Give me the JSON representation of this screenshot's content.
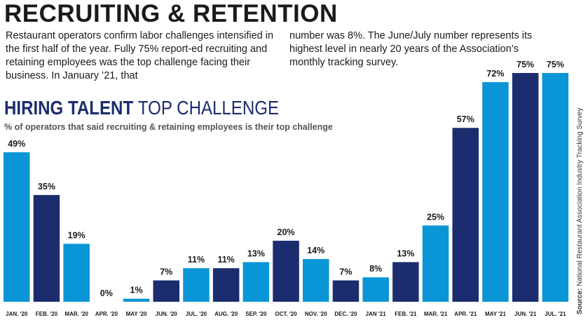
{
  "article": {
    "headline": "RECRUITING & RETENTION",
    "intro_left": "Restaurant operators confirm labor challenges intensified in the first half of the year. Fully 75% report-ed recruiting and retaining employees was the top challenge facing their business. In January ’21, that",
    "intro_right": "number was 8%. The June/July number represents its highest level in nearly 20 years of the Association’s monthly tracking survey."
  },
  "source": {
    "label": "Source:",
    "text": "National Restaurant Association Industry Tracking Survey"
  },
  "colors": {
    "light_blue": "#0a95d6",
    "dark_blue": "#1b2d6e"
  },
  "chart_data": {
    "type": "bar",
    "title_bold": "HIRING TALENT",
    "title_light": "TOP CHALLENGE",
    "subtitle": "% of operators that said recruiting & retaining employees is their top challenge",
    "categories": [
      "JAN. '20",
      "FEB. '20",
      "MAR. '20",
      "APR. '20",
      "MAY '20",
      "JUN. '20",
      "JUL. '20",
      "AUG. '20",
      "SEP. '20",
      "OCT. '20",
      "NOV. '20",
      "DEC. '20",
      "JAN '21",
      "FEB. '21",
      "MAR. '21",
      "APR. '21",
      "MAY '21",
      "JUN. '21",
      "JUL. '21"
    ],
    "values": [
      49,
      35,
      19,
      0,
      1,
      7,
      11,
      11,
      13,
      20,
      14,
      7,
      8,
      13,
      25,
      57,
      72,
      75,
      75
    ],
    "value_labels": [
      "49%",
      "35%",
      "19%",
      "0%",
      "1%",
      "7%",
      "11%",
      "11%",
      "13%",
      "20%",
      "14%",
      "7%",
      "8%",
      "13%",
      "25%",
      "57%",
      "72%",
      "75%",
      "75%"
    ],
    "bar_colors": [
      "light",
      "dark",
      "light",
      "dark",
      "light",
      "dark",
      "light",
      "dark",
      "light",
      "dark",
      "light",
      "dark",
      "light",
      "dark",
      "light",
      "dark",
      "light",
      "dark",
      "light"
    ],
    "ylim": [
      0,
      75
    ],
    "grid": false,
    "legend": "none"
  }
}
